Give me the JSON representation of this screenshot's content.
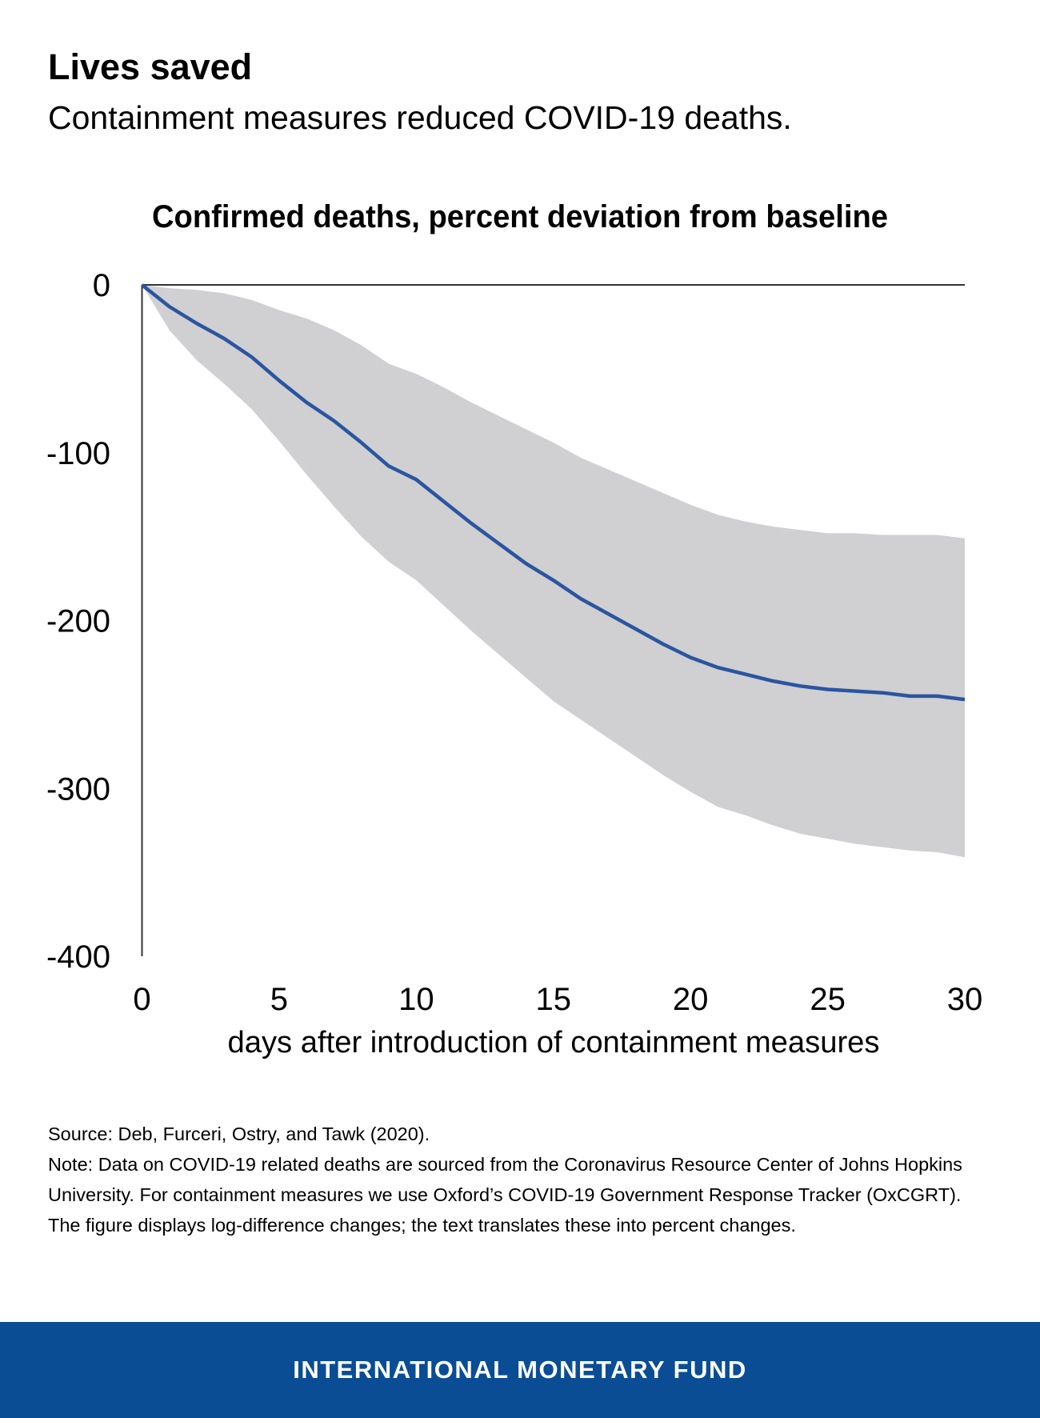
{
  "header": {
    "title": "Lives saved",
    "subtitle": "Containment measures reduced COVID-19 deaths."
  },
  "chart_data": {
    "type": "area",
    "title": "Confirmed deaths, percent deviation from baseline",
    "xlabel": "days after introduction of containment measures",
    "ylabel": "",
    "xlim": [
      0,
      30
    ],
    "ylim": [
      -400,
      0
    ],
    "xticks": [
      "0",
      "5",
      "10",
      "15",
      "20",
      "25",
      "30"
    ],
    "yticks": [
      "0",
      "-100",
      "-200",
      "-300",
      "-400"
    ],
    "grid": false,
    "x": [
      0,
      1,
      2,
      3,
      4,
      5,
      6,
      7,
      8,
      9,
      10,
      11,
      12,
      13,
      14,
      15,
      16,
      17,
      18,
      19,
      20,
      21,
      22,
      23,
      24,
      25,
      26,
      27,
      28,
      29,
      30
    ],
    "series": [
      {
        "role": "estimate",
        "color": "#2a55a0",
        "values": [
          0,
          -13,
          -23,
          -32,
          -43,
          -57,
          -70,
          -81,
          -94,
          -108,
          -116,
          -129,
          -142,
          -154,
          -166,
          -176,
          -187,
          -196,
          -205,
          -214,
          -222,
          -228,
          -232,
          -236,
          -239,
          -241,
          -242,
          -243,
          -245,
          -245,
          -247
        ]
      },
      {
        "role": "upper-bound",
        "color": "#d0cfd1",
        "values": [
          0,
          -2,
          -3,
          -5,
          -9,
          -15,
          -20,
          -27,
          -36,
          -47,
          -53,
          -61,
          -70,
          -78,
          -86,
          -94,
          -103,
          -110,
          -117,
          -124,
          -131,
          -137,
          -141,
          -144,
          -146,
          -148,
          -148,
          -149,
          -149,
          -149,
          -151
        ]
      },
      {
        "role": "lower-bound",
        "color": "#d0cfd1",
        "values": [
          0,
          -27,
          -45,
          -59,
          -74,
          -93,
          -113,
          -132,
          -150,
          -165,
          -176,
          -191,
          -206,
          -220,
          -234,
          -248,
          -259,
          -270,
          -281,
          -292,
          -302,
          -311,
          -316,
          -322,
          -327,
          -330,
          -333,
          -335,
          -337,
          -338,
          -341
        ]
      }
    ]
  },
  "notes": {
    "source": "Source: Deb, Furceri, Ostry, and Tawk (2020).",
    "note": "Note: Data on COVID-19 related deaths are sourced from the Coronavirus Resource Center of Johns Hopkins University. For containment measures we use Oxford’s COVID-19 Government Response Tracker (OxCGRT). The figure displays log-difference changes; the text translates these into percent changes."
  },
  "footer": {
    "label": "INTERNATIONAL MONETARY FUND",
    "color": "#0a4d94"
  }
}
